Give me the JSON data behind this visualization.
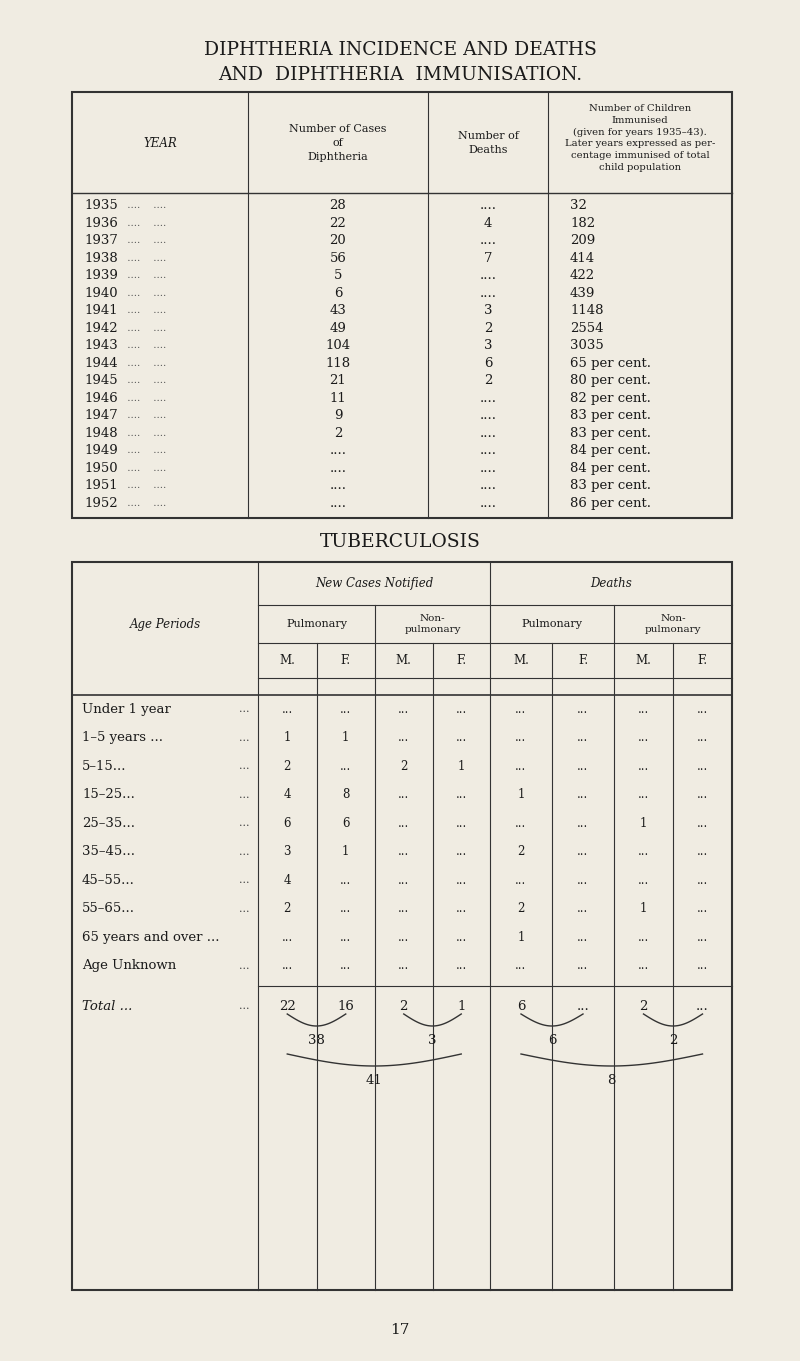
{
  "bg_color": "#f0ece2",
  "title1": "DIPHTHERIA INCIDENCE AND DEATHS",
  "title2": "AND  DIPHTHERIA  IMMUNISATION.",
  "diph_rows": [
    [
      "1935",
      "28",
      "....",
      "32"
    ],
    [
      "1936",
      "22",
      "4",
      "182"
    ],
    [
      "1937",
      "20",
      "....",
      "209"
    ],
    [
      "1938",
      "56",
      "7",
      "414"
    ],
    [
      "1939",
      "5",
      "....",
      "422"
    ],
    [
      "1940",
      "6",
      "....",
      "439"
    ],
    [
      "1941",
      "43",
      "3",
      "1148"
    ],
    [
      "1942",
      "49",
      "2",
      "2554"
    ],
    [
      "1943",
      "104",
      "3",
      "3035"
    ],
    [
      "1944",
      "118",
      "6",
      "65 per cent."
    ],
    [
      "1945",
      "21",
      "2",
      "80 per cent."
    ],
    [
      "1946",
      "11",
      "....",
      "82 per cent."
    ],
    [
      "1947",
      "9",
      "....",
      "83 per cent."
    ],
    [
      "1948",
      "2",
      "....",
      "83 per cent."
    ],
    [
      "1949",
      "....",
      "....",
      "84 per cent."
    ],
    [
      "1950",
      "....",
      "....",
      "84 per cent."
    ],
    [
      "1951",
      "....",
      "....",
      "83 per cent."
    ],
    [
      "1952",
      "....",
      "....",
      "86 per cent."
    ]
  ],
  "tb_title": "TUBERCULOSIS",
  "tb_age_periods": [
    [
      "Under 1 year",
      "..."
    ],
    [
      "1–5 years ...",
      "..."
    ],
    [
      "5–15...",
      "..."
    ],
    [
      "15–25...",
      "..."
    ],
    [
      "25–35...",
      "..."
    ],
    [
      "35–45...",
      "..."
    ],
    [
      "45–55...",
      "..."
    ],
    [
      "55–65...",
      "..."
    ],
    [
      "65 years and over ...",
      ""
    ],
    [
      "Age Unknown",
      "..."
    ]
  ],
  "tb_data": [
    [
      "...",
      "...",
      "...",
      "...",
      "...",
      "...",
      "...",
      "..."
    ],
    [
      "1",
      "1",
      "...",
      "...",
      "...",
      "...",
      "...",
      "..."
    ],
    [
      "2",
      "...",
      "2",
      "1",
      "...",
      "...",
      "...",
      "..."
    ],
    [
      "4",
      "8",
      "...",
      "...",
      "1",
      "...",
      "...",
      "..."
    ],
    [
      "6",
      "6",
      "...",
      "...",
      "...",
      "...",
      "1",
      "..."
    ],
    [
      "3",
      "1",
      "...",
      "...",
      "2",
      "...",
      "...",
      "..."
    ],
    [
      "4",
      "...",
      "...",
      "...",
      "...",
      "...",
      "...",
      "..."
    ],
    [
      "2",
      "...",
      "...",
      "...",
      "2",
      "...",
      "1",
      "..."
    ],
    [
      "...",
      "...",
      "...",
      "...",
      "1",
      "...",
      "...",
      "..."
    ],
    [
      "...",
      "...",
      "...",
      "...",
      "...",
      "...",
      "...",
      "..."
    ]
  ],
  "tb_totals": [
    "22",
    "16",
    "2",
    "1",
    "6",
    "...",
    "2",
    "..."
  ],
  "tb_subtotals": [
    "38",
    "3",
    "6",
    "2"
  ],
  "tb_grandtotals": [
    "41",
    "8"
  ],
  "page_num": "17"
}
